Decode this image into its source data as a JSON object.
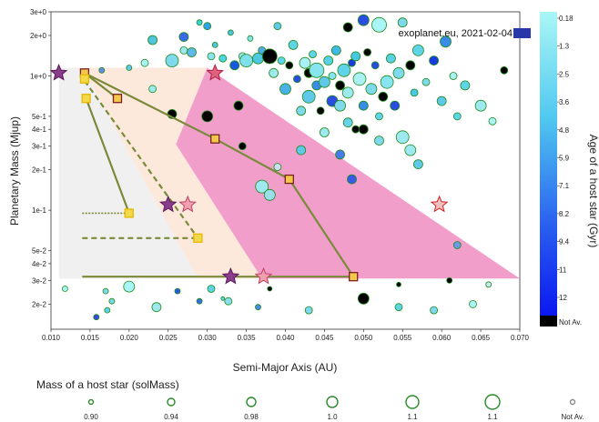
{
  "chart_data": {
    "type": "scatter",
    "xlabel": "Semi-Major Axis (AU)",
    "ylabel": "Planetary Mass (Mjup)",
    "watermark": "exoplanet.eu, 2021-02-04",
    "watermark_badge": "",
    "xlim": [
      0.01,
      0.07
    ],
    "ylim": [
      0.013,
      3.0
    ],
    "yscale": "log",
    "x_ticks": [
      0.01,
      0.015,
      0.02,
      0.025,
      0.03,
      0.035,
      0.04,
      0.045,
      0.05,
      0.055,
      0.06,
      0.065,
      0.07
    ],
    "x_tick_labels": [
      "0.010",
      "0.015",
      "0.020",
      "0.025",
      "0.030",
      "0.035",
      "0.040",
      "0.045",
      "0.050",
      "0.055",
      "0.060",
      "0.065",
      "0.070"
    ],
    "y_ticks": [
      3,
      2,
      1,
      0.5,
      0.4,
      0.3,
      0.2,
      0.1,
      0.05,
      0.04,
      0.03,
      0.02
    ],
    "y_tick_labels": [
      "3e+0",
      "2e+0",
      "1e+0",
      "5e-1",
      "4e-1",
      "3e-1",
      "2e-1",
      "1e-1",
      "5e-2",
      "4e-2",
      "3e-2",
      "2e-2"
    ],
    "colorbar": {
      "title": "Age of a host star (Gyr)",
      "labels": [
        "0.18",
        "1.3",
        "2.5",
        "3.6",
        "4.8",
        "5.9",
        "7.1",
        "8.2",
        "9.4",
        "11",
        "12",
        "Not Av."
      ],
      "top_color": "#aaf6f6",
      "bottom_color": "#0a18f0",
      "na_color": "#000000"
    },
    "size_legend": {
      "title": "Mass of a host star (solMass)",
      "labels": [
        "0.90",
        "0.94",
        "0.98",
        "1.0",
        "1.1",
        "1.1",
        "Not Av."
      ],
      "sizes": [
        2.5,
        4,
        5,
        6,
        7,
        8,
        2.5
      ]
    },
    "regions": [
      {
        "color": "#f0f0f0",
        "points": [
          [
            0.011,
            1.15
          ],
          [
            0.014,
            1.15
          ],
          [
            0.0288,
            0.031
          ],
          [
            0.011,
            0.031
          ]
        ]
      },
      {
        "color": "#fde8dc",
        "points": [
          [
            0.014,
            1.15
          ],
          [
            0.03,
            1.15
          ],
          [
            0.037,
            0.031
          ],
          [
            0.0288,
            0.031
          ]
        ]
      },
      {
        "color": "#f29ecb",
        "points": [
          [
            0.03,
            1.15
          ],
          [
            0.07,
            0.031
          ],
          [
            0.037,
            0.031
          ],
          [
            0.026,
            0.31
          ]
        ]
      }
    ],
    "tracks": [
      {
        "style": "solid",
        "points": [
          [
            0.0143,
            1.05
          ],
          [
            0.031,
            0.34
          ],
          [
            0.0405,
            0.17
          ],
          [
            0.0487,
            0.032
          ]
        ]
      },
      {
        "style": "solid",
        "points": [
          [
            0.0143,
            1.05
          ],
          [
            0.0185,
            0.68
          ]
        ]
      },
      {
        "style": "dashed",
        "points": [
          [
            0.0143,
            0.92
          ],
          [
            0.0288,
            0.062
          ]
        ]
      },
      {
        "style": "solid",
        "points": [
          [
            0.0145,
            0.68
          ],
          [
            0.02,
            0.095
          ]
        ]
      },
      {
        "style": "dotted",
        "points": [
          [
            0.014,
            0.095
          ],
          [
            0.02,
            0.095
          ]
        ]
      },
      {
        "style": "dashed",
        "points": [
          [
            0.014,
            0.062
          ],
          [
            0.0288,
            0.062
          ]
        ]
      },
      {
        "style": "solid",
        "points": [
          [
            0.014,
            0.032
          ],
          [
            0.0487,
            0.032
          ]
        ]
      }
    ],
    "square_markers": [
      {
        "x": 0.0143,
        "y": 1.05,
        "fill": "#f2c84b",
        "edge": "#7a2020"
      },
      {
        "x": 0.0185,
        "y": 0.68,
        "fill": "#f2c84b",
        "edge": "#7a2020"
      },
      {
        "x": 0.031,
        "y": 0.34,
        "fill": "#f2c84b",
        "edge": "#7a2020"
      },
      {
        "x": 0.0405,
        "y": 0.17,
        "fill": "#f2c84b",
        "edge": "#7a2020"
      },
      {
        "x": 0.0487,
        "y": 0.032,
        "fill": "#f2c84b",
        "edge": "#7a2020"
      },
      {
        "x": 0.0143,
        "y": 0.95,
        "fill": "#f2d84b",
        "edge": "#e6b800"
      },
      {
        "x": 0.0145,
        "y": 0.68,
        "fill": "#f2d84b",
        "edge": "#e6b800"
      },
      {
        "x": 0.02,
        "y": 0.095,
        "fill": "#f2d84b",
        "edge": "#e6b800"
      },
      {
        "x": 0.0288,
        "y": 0.062,
        "fill": "#f2d84b",
        "edge": "#e6b800"
      }
    ],
    "star_markers": [
      {
        "x": 0.011,
        "y": 1.05,
        "fill": "#8a3d8a",
        "edge": "#5a1a5a",
        "r": 9
      },
      {
        "x": 0.031,
        "y": 1.05,
        "fill": "#e06080",
        "edge": "#b02040",
        "r": 9
      },
      {
        "x": 0.025,
        "y": 0.11,
        "fill": "#8a3d8a",
        "edge": "#5a1a5a",
        "r": 9
      },
      {
        "x": 0.0275,
        "y": 0.11,
        "fill": "#f0a0b0",
        "edge": "#c04060",
        "r": 9
      },
      {
        "x": 0.033,
        "y": 0.032,
        "fill": "#8a3d8a",
        "edge": "#5a1a5a",
        "r": 9
      },
      {
        "x": 0.0372,
        "y": 0.032,
        "fill": "#f0a0b0",
        "edge": "#c04060",
        "r": 9
      },
      {
        "x": 0.0597,
        "y": 0.11,
        "fill": "#f0c0c0",
        "edge": "#d02020",
        "r": 9
      }
    ],
    "planets": [
      {
        "x": 0.023,
        "y": 1.85,
        "r": 5,
        "c": "#4fc4dc"
      },
      {
        "x": 0.027,
        "y": 1.95,
        "r": 5,
        "c": "#3a6ae8"
      },
      {
        "x": 0.027,
        "y": 1.55,
        "r": 4,
        "c": "#9ee8f0"
      },
      {
        "x": 0.0255,
        "y": 1.3,
        "r": 7,
        "c": "#7fd8ec"
      },
      {
        "x": 0.028,
        "y": 1.5,
        "r": 5,
        "c": "#5fb8ec"
      },
      {
        "x": 0.029,
        "y": 2.5,
        "r": 3,
        "c": "#40d0e0"
      },
      {
        "x": 0.03,
        "y": 2.35,
        "r": 4,
        "c": "#30a0e8"
      },
      {
        "x": 0.0305,
        "y": 1.4,
        "r": 4,
        "c": "#8ee0f0"
      },
      {
        "x": 0.031,
        "y": 1.7,
        "r": 3,
        "c": "#4fc4dc"
      },
      {
        "x": 0.032,
        "y": 1.35,
        "r": 4,
        "c": "#48d8e0"
      },
      {
        "x": 0.033,
        "y": 2.1,
        "r": 3,
        "c": "#50c0e0"
      },
      {
        "x": 0.0335,
        "y": 1.2,
        "r": 5,
        "c": "#1a58e0"
      },
      {
        "x": 0.0345,
        "y": 1.4,
        "r": 4,
        "c": "#9ee8f0"
      },
      {
        "x": 0.035,
        "y": 1.3,
        "r": 7,
        "c": "#7fe0ec"
      },
      {
        "x": 0.0355,
        "y": 1.9,
        "r": 3,
        "c": "#88e4f0"
      },
      {
        "x": 0.0365,
        "y": 1.35,
        "r": 6,
        "c": "#50c8e4"
      },
      {
        "x": 0.037,
        "y": 1.55,
        "r": 4,
        "c": "#50a8e8"
      },
      {
        "x": 0.038,
        "y": 1.4,
        "r": 8,
        "c": "#000000"
      },
      {
        "x": 0.0385,
        "y": 1.05,
        "r": 5,
        "c": "#9ee8f0"
      },
      {
        "x": 0.0395,
        "y": 1.3,
        "r": 4,
        "c": "#5fd4e8"
      },
      {
        "x": 0.04,
        "y": 0.8,
        "r": 6,
        "c": "#4ab0e8"
      },
      {
        "x": 0.0405,
        "y": 1.2,
        "r": 4,
        "c": "#000000"
      },
      {
        "x": 0.041,
        "y": 1.7,
        "r": 5,
        "c": "#5fd4e8"
      },
      {
        "x": 0.0415,
        "y": 0.95,
        "r": 4,
        "c": "#2a4ce0"
      },
      {
        "x": 0.042,
        "y": 0.55,
        "r": 5,
        "c": "#7fd8ec"
      },
      {
        "x": 0.0425,
        "y": 1.25,
        "r": 6,
        "c": "#aaf0f4"
      },
      {
        "x": 0.043,
        "y": 1.05,
        "r": 5,
        "c": "#000000"
      },
      {
        "x": 0.043,
        "y": 0.7,
        "r": 7,
        "c": "#60c8e8"
      },
      {
        "x": 0.0435,
        "y": 1.45,
        "r": 4,
        "c": "#5fd4e8"
      },
      {
        "x": 0.044,
        "y": 0.85,
        "r": 5,
        "c": "#3a8ae8"
      },
      {
        "x": 0.044,
        "y": 1.1,
        "r": 8,
        "c": "#88e4f0"
      },
      {
        "x": 0.0445,
        "y": 0.55,
        "r": 4,
        "c": "#000000"
      },
      {
        "x": 0.045,
        "y": 0.9,
        "r": 6,
        "c": "#60c8e8"
      },
      {
        "x": 0.0455,
        "y": 1.3,
        "r": 5,
        "c": "#5ad0e8"
      },
      {
        "x": 0.046,
        "y": 0.65,
        "r": 6,
        "c": "#2a4ce0"
      },
      {
        "x": 0.046,
        "y": 1.0,
        "r": 4,
        "c": "#88e4f0"
      },
      {
        "x": 0.0465,
        "y": 1.55,
        "r": 5,
        "c": "#40b8e8"
      },
      {
        "x": 0.047,
        "y": 0.6,
        "r": 6,
        "c": "#7fd8ec"
      },
      {
        "x": 0.047,
        "y": 0.85,
        "r": 5,
        "c": "#000000"
      },
      {
        "x": 0.0475,
        "y": 1.1,
        "r": 7,
        "c": "#5fd4e8"
      },
      {
        "x": 0.048,
        "y": 0.45,
        "r": 5,
        "c": "#6ad0ec"
      },
      {
        "x": 0.048,
        "y": 0.75,
        "r": 6,
        "c": "#9ee8f0"
      },
      {
        "x": 0.0485,
        "y": 1.25,
        "r": 4,
        "c": "#1a3ae0"
      },
      {
        "x": 0.049,
        "y": 0.4,
        "r": 4,
        "c": "#000000"
      },
      {
        "x": 0.049,
        "y": 1.4,
        "r": 5,
        "c": "#48c8e4"
      },
      {
        "x": 0.0495,
        "y": 0.95,
        "r": 7,
        "c": "#aaf0f4"
      },
      {
        "x": 0.05,
        "y": 0.6,
        "r": 5,
        "c": "#3a8ae8"
      },
      {
        "x": 0.0505,
        "y": 1.5,
        "r": 4,
        "c": "#000000"
      },
      {
        "x": 0.051,
        "y": 0.8,
        "r": 6,
        "c": "#7fd8ec"
      },
      {
        "x": 0.0515,
        "y": 1.2,
        "r": 4,
        "c": "#2a4ce0"
      },
      {
        "x": 0.052,
        "y": 0.5,
        "r": 4,
        "c": "#5fd4e8"
      },
      {
        "x": 0.0525,
        "y": 0.7,
        "r": 5,
        "c": "#000000"
      },
      {
        "x": 0.053,
        "y": 0.9,
        "r": 7,
        "c": "#88e4f0"
      },
      {
        "x": 0.0535,
        "y": 1.35,
        "r": 5,
        "c": "#5ad0e8"
      },
      {
        "x": 0.054,
        "y": 0.6,
        "r": 5,
        "c": "#2a4ce0"
      },
      {
        "x": 0.0545,
        "y": 1.05,
        "r": 6,
        "c": "#7fd8ec"
      },
      {
        "x": 0.055,
        "y": 0.35,
        "r": 7,
        "c": "#9ee8f0"
      },
      {
        "x": 0.056,
        "y": 1.2,
        "r": 5,
        "c": "#000000"
      },
      {
        "x": 0.0565,
        "y": 0.75,
        "r": 4,
        "c": "#48c8e4"
      },
      {
        "x": 0.057,
        "y": 1.55,
        "r": 6,
        "c": "#5fd4e8"
      },
      {
        "x": 0.058,
        "y": 0.9,
        "r": 4,
        "c": "#7fd8ec"
      },
      {
        "x": 0.059,
        "y": 1.3,
        "r": 5,
        "c": "#1a3ae0"
      },
      {
        "x": 0.06,
        "y": 0.65,
        "r": 5,
        "c": "#60c8e8"
      },
      {
        "x": 0.0605,
        "y": 1.8,
        "r": 6,
        "c": "#3a8ae8"
      },
      {
        "x": 0.0615,
        "y": 1.0,
        "r": 4,
        "c": "#aaf0f4"
      },
      {
        "x": 0.063,
        "y": 0.85,
        "r": 5,
        "c": "#5fd4e8"
      },
      {
        "x": 0.065,
        "y": 0.6,
        "r": 6,
        "c": "#9ee8f0"
      },
      {
        "x": 0.068,
        "y": 1.1,
        "r": 4,
        "c": "#000000"
      },
      {
        "x": 0.052,
        "y": 2.4,
        "r": 8,
        "c": "#aaf6f6"
      },
      {
        "x": 0.05,
        "y": 2.6,
        "r": 6,
        "c": "#2a4ce0"
      },
      {
        "x": 0.048,
        "y": 2.3,
        "r": 5,
        "c": "#000000"
      },
      {
        "x": 0.055,
        "y": 2.5,
        "r": 5,
        "c": "#7fd8ec"
      },
      {
        "x": 0.039,
        "y": 2.35,
        "r": 4,
        "c": "#60c8e8"
      },
      {
        "x": 0.022,
        "y": 1.25,
        "r": 4,
        "c": "#aaf6f6"
      },
      {
        "x": 0.02,
        "y": 1.15,
        "r": 3,
        "c": "#60c8e8"
      },
      {
        "x": 0.0165,
        "y": 1.1,
        "r": 3,
        "c": "#6a8ae8"
      },
      {
        "x": 0.023,
        "y": 0.8,
        "r": 4,
        "c": "#9ee8f0"
      },
      {
        "x": 0.0255,
        "y": 0.52,
        "r": 5,
        "c": "#000000"
      },
      {
        "x": 0.034,
        "y": 0.6,
        "r": 5,
        "c": "#000000"
      },
      {
        "x": 0.03,
        "y": 0.5,
        "r": 6,
        "c": "#000000"
      },
      {
        "x": 0.0345,
        "y": 0.3,
        "r": 4,
        "c": "#000000"
      },
      {
        "x": 0.037,
        "y": 0.15,
        "r": 7,
        "c": "#9ee8f0"
      },
      {
        "x": 0.038,
        "y": 0.13,
        "r": 6,
        "c": "#9ae0ec"
      },
      {
        "x": 0.039,
        "y": 0.21,
        "r": 4,
        "c": "#c8e0f0"
      },
      {
        "x": 0.042,
        "y": 0.28,
        "r": 5,
        "c": "#60c8e8"
      },
      {
        "x": 0.045,
        "y": 0.38,
        "r": 5,
        "c": "#9ee8f0"
      },
      {
        "x": 0.047,
        "y": 0.26,
        "r": 5,
        "c": "#4a7ae8"
      },
      {
        "x": 0.0485,
        "y": 0.17,
        "r": 5,
        "c": "#3a5ae8"
      },
      {
        "x": 0.05,
        "y": 0.4,
        "r": 5,
        "c": "#000000"
      },
      {
        "x": 0.052,
        "y": 0.33,
        "r": 5,
        "c": "#7fd8ec"
      },
      {
        "x": 0.056,
        "y": 0.28,
        "r": 6,
        "c": "#9ee8f0"
      },
      {
        "x": 0.057,
        "y": 0.22,
        "r": 5,
        "c": "#60c8e8"
      },
      {
        "x": 0.062,
        "y": 0.5,
        "r": 4,
        "c": "#5fd4e8"
      },
      {
        "x": 0.0665,
        "y": 0.46,
        "r": 4,
        "c": "#aaf6f6"
      },
      {
        "x": 0.062,
        "y": 0.055,
        "r": 4,
        "c": "#6a9ae8"
      },
      {
        "x": 0.05,
        "y": 0.022,
        "r": 6,
        "c": "#000000"
      },
      {
        "x": 0.0545,
        "y": 0.019,
        "r": 4,
        "c": "#5fd4e8"
      },
      {
        "x": 0.059,
        "y": 0.018,
        "r": 4,
        "c": "#7fd8ec"
      },
      {
        "x": 0.061,
        "y": 0.03,
        "r": 3,
        "c": "#000000"
      },
      {
        "x": 0.064,
        "y": 0.02,
        "r": 4,
        "c": "#aaf6f6"
      },
      {
        "x": 0.066,
        "y": 0.028,
        "r": 3,
        "c": "#c8e8f8"
      },
      {
        "x": 0.043,
        "y": 0.018,
        "r": 4,
        "c": "#7fd8ec"
      },
      {
        "x": 0.0365,
        "y": 0.019,
        "r": 3,
        "c": "#4a8ae8"
      },
      {
        "x": 0.0327,
        "y": 0.021,
        "r": 4,
        "c": "#88e0ec"
      },
      {
        "x": 0.0305,
        "y": 0.026,
        "r": 4,
        "c": "#5fd4e8"
      },
      {
        "x": 0.029,
        "y": 0.021,
        "r": 3,
        "c": "#3a6ae8"
      },
      {
        "x": 0.0262,
        "y": 0.025,
        "r": 3,
        "c": "#2a58e0"
      },
      {
        "x": 0.0235,
        "y": 0.019,
        "r": 5,
        "c": "#9ee8f0"
      },
      {
        "x": 0.02,
        "y": 0.027,
        "r": 6,
        "c": "#aaf6f6"
      },
      {
        "x": 0.0178,
        "y": 0.021,
        "r": 3,
        "c": "#7fd8ec"
      },
      {
        "x": 0.0172,
        "y": 0.018,
        "r": 3,
        "c": "#5fd4e8"
      },
      {
        "x": 0.0158,
        "y": 0.016,
        "r": 3,
        "c": "#3a48e0"
      },
      {
        "x": 0.0118,
        "y": 0.026,
        "r": 3,
        "c": "#aaf6f6"
      },
      {
        "x": 0.017,
        "y": 0.025,
        "r": 3,
        "c": "#7fd8ec"
      },
      {
        "x": 0.038,
        "y": 0.026,
        "r": 2.5,
        "c": "#000000"
      },
      {
        "x": 0.032,
        "y": 0.022,
        "r": 2,
        "c": "#5fd4e8"
      },
      {
        "x": 0.0545,
        "y": 0.028,
        "r": 2.5,
        "c": "#000000"
      }
    ]
  }
}
